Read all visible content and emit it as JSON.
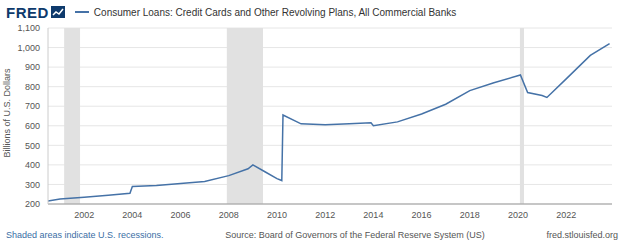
{
  "chart_data": {
    "type": "line",
    "logo": "FRED",
    "y_label": "Billions of U.S. Dollars",
    "footer_left": "Shaded areas indicate U.S. recessions.",
    "footer_center": "Source: Board of Governors of the Federal Reserve System (US)",
    "footer_right": "fred.stlouisfed.org",
    "x": [
      2000.5,
      2001.0,
      2002.0,
      2003.0,
      2003.9,
      2004.0,
      2005.0,
      2006.0,
      2007.0,
      2008.0,
      2008.8,
      2009.0,
      2009.5,
      2010.0,
      2010.2,
      2010.25,
      2011.0,
      2012.0,
      2013.0,
      2013.9,
      2014.0,
      2015.0,
      2016.0,
      2017.0,
      2018.0,
      2019.0,
      2020.1,
      2020.4,
      2021.0,
      2021.2,
      2022.0,
      2023.0,
      2023.8
    ],
    "series": [
      {
        "name": "Consumer Loans: Credit Cards and Other Revolving Plans, All Commercial Banks",
        "color": "#4572a7",
        "values": [
          215,
          225,
          235,
          245,
          255,
          290,
          295,
          305,
          315,
          345,
          380,
          400,
          365,
          330,
          320,
          655,
          610,
          605,
          610,
          615,
          600,
          620,
          660,
          710,
          780,
          820,
          860,
          770,
          755,
          745,
          840,
          960,
          1020
        ]
      }
    ],
    "xlim": [
      2000.5,
      2023.9
    ],
    "xticks": [
      2002,
      2004,
      2006,
      2008,
      2010,
      2012,
      2014,
      2016,
      2018,
      2020,
      2022
    ],
    "ylim": [
      200,
      1100
    ],
    "yticks": [
      200,
      300,
      400,
      500,
      600,
      700,
      800,
      900,
      {
        "value": 1000,
        "label": "1,000"
      },
      {
        "value": 1100,
        "label": "1,100"
      }
    ],
    "grid": true,
    "recessions": [
      [
        2001.17,
        2001.83
      ],
      [
        2007.92,
        2009.42
      ],
      [
        2020.08,
        2020.25
      ]
    ]
  }
}
